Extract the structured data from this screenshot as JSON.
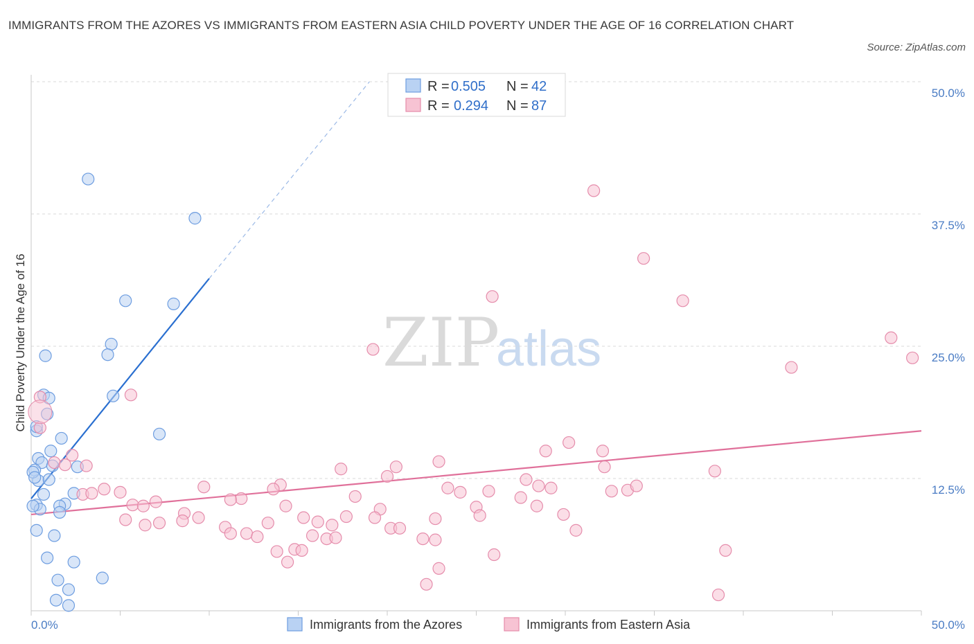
{
  "title": "IMMIGRANTS FROM THE AZORES VS IMMIGRANTS FROM EASTERN ASIA CHILD POVERTY UNDER THE AGE OF 16 CORRELATION CHART",
  "source": "Source: ZipAtlas.com",
  "watermark": {
    "zip": "ZIP",
    "atlas": "atlas"
  },
  "colors": {
    "azores_fill": "#b9d2f3",
    "azores_stroke": "#6d9de0",
    "azores_line": "#2a6fd0",
    "asia_fill": "#f7c3d3",
    "asia_stroke": "#e58cab",
    "asia_line": "#e0709a",
    "grid": "#d9d9d9",
    "axis_tick_text": "#4a7cc4"
  },
  "chart_data": {
    "type": "scatter",
    "xlabel": "",
    "ylabel": "Child Poverty Under the Age of 16",
    "xlim": [
      0,
      50
    ],
    "ylim": [
      0,
      50
    ],
    "y_ticks": [
      {
        "value": 12.5,
        "label": "12.5%"
      },
      {
        "value": 25.0,
        "label": "25.0%"
      },
      {
        "value": 37.5,
        "label": "37.5%"
      },
      {
        "value": 50.0,
        "label": "50.0%"
      }
    ],
    "x_tick_labels": {
      "min": "0.0%",
      "max": "50.0%"
    },
    "grid": true,
    "legend_position": "top-center",
    "legend": [
      {
        "r_label": "R =",
        "r_value": "0.505",
        "n_label": "N =",
        "n_value": "42"
      },
      {
        "r_label": "R =",
        "r_value": "0.294",
        "n_label": "N =",
        "n_value": "87"
      }
    ],
    "series": [
      {
        "name": "Immigrants from the Azores",
        "trend": {
          "x0": 0.0,
          "y0": 10.6,
          "x1": 10.0,
          "y1": 31.4,
          "dash_to_x": 19.0,
          "dash_to_y": 50.0
        },
        "points": [
          [
            3.2,
            40.8
          ],
          [
            9.2,
            37.1
          ],
          [
            5.3,
            29.3
          ],
          [
            8.0,
            29.0
          ],
          [
            4.5,
            25.2
          ],
          [
            4.3,
            24.2
          ],
          [
            0.8,
            24.1
          ],
          [
            0.7,
            20.4
          ],
          [
            1.0,
            20.1
          ],
          [
            4.6,
            20.3
          ],
          [
            0.3,
            17.0
          ],
          [
            0.9,
            18.6
          ],
          [
            7.2,
            16.7
          ],
          [
            1.1,
            15.1
          ],
          [
            1.7,
            16.3
          ],
          [
            0.4,
            14.4
          ],
          [
            0.6,
            14.0
          ],
          [
            1.2,
            13.7
          ],
          [
            2.6,
            13.6
          ],
          [
            0.2,
            13.3
          ],
          [
            0.4,
            12.3
          ],
          [
            1.0,
            12.4
          ],
          [
            0.7,
            11.0
          ],
          [
            2.4,
            11.1
          ],
          [
            1.9,
            10.1
          ],
          [
            0.3,
            10.0
          ],
          [
            1.6,
            9.9
          ],
          [
            0.5,
            9.6
          ],
          [
            1.6,
            9.3
          ],
          [
            0.3,
            7.6
          ],
          [
            1.3,
            7.1
          ],
          [
            0.9,
            5.0
          ],
          [
            2.4,
            4.6
          ],
          [
            1.5,
            2.9
          ],
          [
            4.0,
            3.1
          ],
          [
            2.1,
            2.0
          ],
          [
            1.4,
            1.0
          ],
          [
            2.1,
            0.5
          ],
          [
            0.1,
            13.1
          ],
          [
            0.2,
            12.6
          ],
          [
            0.1,
            9.9
          ],
          [
            0.3,
            17.4
          ]
        ]
      },
      {
        "name": "Immigrants from Eastern Asia",
        "trend": {
          "x0": 0.0,
          "y0": 9.1,
          "x1": 50.0,
          "y1": 17.0
        },
        "points": [
          [
            31.6,
            39.7
          ],
          [
            34.4,
            33.3
          ],
          [
            25.9,
            29.7
          ],
          [
            36.6,
            29.3
          ],
          [
            48.3,
            25.8
          ],
          [
            19.2,
            24.7
          ],
          [
            42.7,
            23.0
          ],
          [
            49.5,
            23.9
          ],
          [
            5.6,
            20.4
          ],
          [
            0.5,
            20.2
          ],
          [
            0.5,
            17.3
          ],
          [
            30.2,
            15.9
          ],
          [
            28.9,
            15.1
          ],
          [
            32.1,
            15.1
          ],
          [
            2.3,
            14.7
          ],
          [
            1.3,
            14.0
          ],
          [
            1.9,
            13.8
          ],
          [
            3.1,
            13.7
          ],
          [
            22.9,
            14.1
          ],
          [
            20.5,
            13.6
          ],
          [
            17.4,
            13.4
          ],
          [
            32.2,
            13.6
          ],
          [
            38.4,
            13.2
          ],
          [
            27.8,
            12.4
          ],
          [
            20.0,
            12.7
          ],
          [
            14.0,
            11.9
          ],
          [
            13.6,
            11.5
          ],
          [
            9.7,
            11.7
          ],
          [
            4.1,
            11.5
          ],
          [
            5.0,
            11.2
          ],
          [
            25.7,
            11.3
          ],
          [
            23.4,
            11.6
          ],
          [
            24.1,
            11.2
          ],
          [
            28.5,
            11.8
          ],
          [
            29.2,
            11.6
          ],
          [
            33.5,
            11.4
          ],
          [
            34.0,
            11.8
          ],
          [
            32.6,
            11.3
          ],
          [
            18.2,
            10.8
          ],
          [
            11.8,
            10.6
          ],
          [
            11.2,
            10.5
          ],
          [
            27.5,
            10.7
          ],
          [
            2.9,
            11.0
          ],
          [
            3.4,
            11.1
          ],
          [
            7.0,
            10.3
          ],
          [
            5.7,
            10.0
          ],
          [
            6.3,
            9.9
          ],
          [
            14.3,
            9.9
          ],
          [
            19.6,
            9.6
          ],
          [
            25.0,
            9.8
          ],
          [
            28.4,
            9.9
          ],
          [
            8.6,
            9.2
          ],
          [
            9.4,
            8.8
          ],
          [
            15.3,
            8.8
          ],
          [
            17.7,
            8.9
          ],
          [
            19.3,
            8.8
          ],
          [
            22.7,
            8.7
          ],
          [
            25.2,
            9.0
          ],
          [
            29.9,
            9.1
          ],
          [
            5.3,
            8.6
          ],
          [
            6.4,
            8.1
          ],
          [
            7.2,
            8.3
          ],
          [
            8.5,
            8.5
          ],
          [
            10.9,
            7.9
          ],
          [
            12.1,
            7.3
          ],
          [
            13.3,
            8.3
          ],
          [
            16.1,
            8.4
          ],
          [
            16.9,
            8.1
          ],
          [
            20.2,
            7.8
          ],
          [
            20.7,
            7.8
          ],
          [
            30.6,
            7.6
          ],
          [
            11.2,
            7.3
          ],
          [
            12.7,
            7.0
          ],
          [
            15.8,
            7.1
          ],
          [
            16.6,
            6.8
          ],
          [
            17.1,
            6.9
          ],
          [
            22.0,
            6.8
          ],
          [
            22.7,
            6.7
          ],
          [
            13.8,
            5.6
          ],
          [
            14.8,
            5.8
          ],
          [
            15.2,
            5.7
          ],
          [
            26.0,
            5.3
          ],
          [
            39.0,
            5.7
          ],
          [
            14.4,
            4.6
          ],
          [
            22.9,
            4.0
          ],
          [
            22.2,
            2.5
          ],
          [
            38.6,
            1.5
          ]
        ]
      }
    ]
  }
}
